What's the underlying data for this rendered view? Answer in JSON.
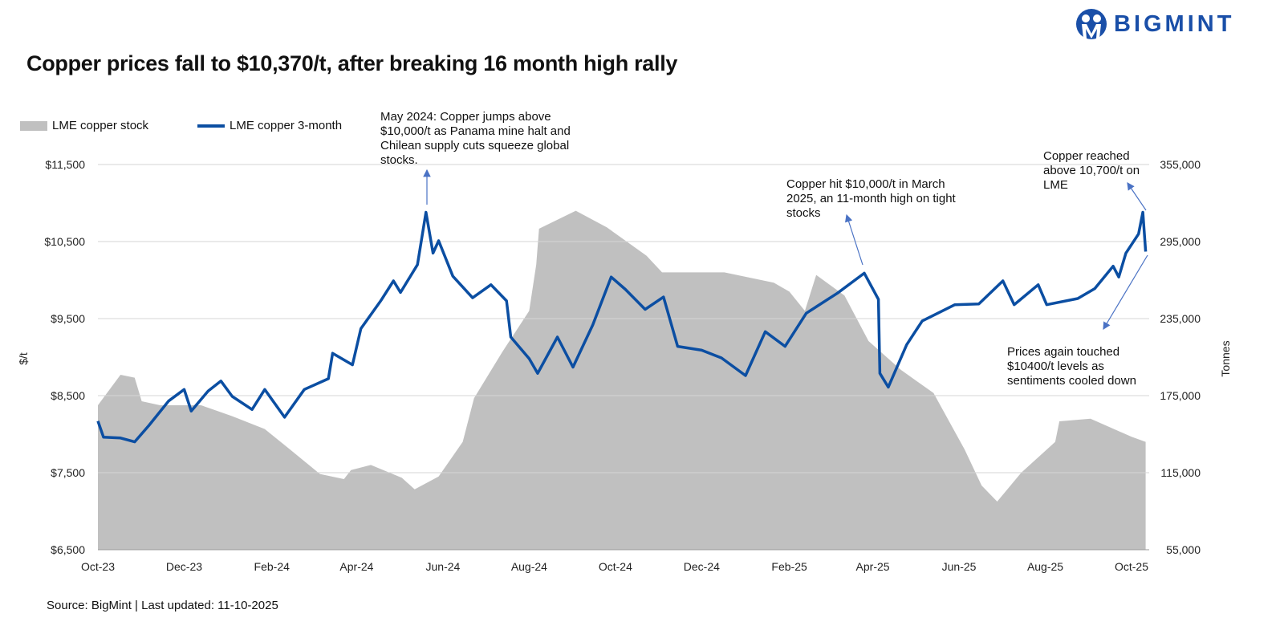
{
  "title": "Copper prices fall  to $10,370/t, after breaking 16 month high rally",
  "logo": {
    "text": "BIGMINT",
    "color": "#1a4fa8"
  },
  "source": "Source: BigMint | Last updated: 11-10-2025",
  "chart_data": {
    "type": "line+area",
    "x_ticks": [
      "Oct-23",
      "Dec-23",
      "Feb-24",
      "Apr-24",
      "Jun-24",
      "Aug-24",
      "Oct-24",
      "Dec-24",
      "Feb-25",
      "Apr-25",
      "Jun-25",
      "Aug-25",
      "Oct-25"
    ],
    "x_tick_dates": [
      "2023-10-01",
      "2023-12-01",
      "2024-02-01",
      "2024-04-01",
      "2024-06-01",
      "2024-08-01",
      "2024-10-01",
      "2024-12-01",
      "2025-02-01",
      "2025-04-01",
      "2025-06-01",
      "2025-08-01",
      "2025-10-01"
    ],
    "y_left": {
      "label": "$/t",
      "range": [
        6500,
        11500
      ],
      "ticks": [
        "$6,500",
        "$7,500",
        "$8,500",
        "$9,500",
        "$10,500",
        "$11,500"
      ],
      "tick_values": [
        6500,
        7500,
        8500,
        9500,
        10500,
        11500
      ]
    },
    "y_right": {
      "label": "Tonnes",
      "range": [
        55000,
        355000
      ],
      "ticks": [
        "55,000",
        "115,000",
        "175,000",
        "235,000",
        "295,000",
        "355,000"
      ],
      "tick_values": [
        55000,
        115000,
        175000,
        235000,
        295000,
        355000
      ]
    },
    "grid": "horizontal",
    "legend_position": "top-left",
    "series": [
      {
        "name": "LME copper stock",
        "type": "area",
        "axis": "right",
        "color": "#c0c0c0",
        "points": [
          [
            "2023-10-01",
            167500
          ],
          [
            "2023-10-17",
            191250
          ],
          [
            "2023-10-27",
            189000
          ],
          [
            "2023-11-01",
            170600
          ],
          [
            "2023-11-14",
            167500
          ],
          [
            "2023-12-13",
            167500
          ],
          [
            "2024-01-04",
            159000
          ],
          [
            "2024-01-27",
            149000
          ],
          [
            "2024-02-14",
            133000
          ],
          [
            "2024-03-06",
            114000
          ],
          [
            "2024-03-23",
            110000
          ],
          [
            "2024-03-28",
            117000
          ],
          [
            "2024-04-11",
            121000
          ],
          [
            "2024-05-03",
            111000
          ],
          [
            "2024-05-12",
            102000
          ],
          [
            "2024-05-29",
            112000
          ],
          [
            "2024-06-15",
            139000
          ],
          [
            "2024-06-23",
            173000
          ],
          [
            "2024-07-13",
            209000
          ],
          [
            "2024-08-01",
            241000
          ],
          [
            "2024-08-06",
            277000
          ],
          [
            "2024-08-08",
            305000
          ],
          [
            "2024-09-03",
            319000
          ],
          [
            "2024-09-25",
            306000
          ],
          [
            "2024-10-23",
            284000
          ],
          [
            "2024-11-03",
            271000
          ],
          [
            "2024-12-17",
            271000
          ],
          [
            "2025-01-21",
            263000
          ],
          [
            "2025-02-01",
            256000
          ],
          [
            "2025-02-12",
            241000
          ],
          [
            "2025-02-20",
            269000
          ],
          [
            "2025-03-12",
            253000
          ],
          [
            "2025-03-29",
            217500
          ],
          [
            "2025-04-21",
            195000
          ],
          [
            "2025-05-14",
            177000
          ],
          [
            "2025-06-05",
            133000
          ],
          [
            "2025-06-17",
            105000
          ],
          [
            "2025-06-28",
            92500
          ],
          [
            "2025-07-15",
            115000
          ],
          [
            "2025-08-08",
            139000
          ],
          [
            "2025-08-11",
            155000
          ],
          [
            "2025-09-02",
            157000
          ],
          [
            "2025-10-01",
            143000
          ],
          [
            "2025-10-11",
            139000
          ]
        ]
      },
      {
        "name": "LME copper 3-month",
        "type": "line",
        "axis": "left",
        "color": "#0b4ea2",
        "points": [
          [
            "2023-10-01",
            8170
          ],
          [
            "2023-10-05",
            7960
          ],
          [
            "2023-10-17",
            7950
          ],
          [
            "2023-10-27",
            7900
          ],
          [
            "2023-11-06",
            8110
          ],
          [
            "2023-11-20",
            8430
          ],
          [
            "2023-12-01",
            8580
          ],
          [
            "2023-12-06",
            8300
          ],
          [
            "2023-12-18",
            8560
          ],
          [
            "2023-12-27",
            8690
          ],
          [
            "2024-01-04",
            8490
          ],
          [
            "2024-01-18",
            8320
          ],
          [
            "2024-01-27",
            8580
          ],
          [
            "2024-02-10",
            8220
          ],
          [
            "2024-02-24",
            8580
          ],
          [
            "2024-03-12",
            8720
          ],
          [
            "2024-03-15",
            9050
          ],
          [
            "2024-03-29",
            8900
          ],
          [
            "2024-04-04",
            9370
          ],
          [
            "2024-04-18",
            9730
          ],
          [
            "2024-04-27",
            9990
          ],
          [
            "2024-05-02",
            9840
          ],
          [
            "2024-05-14",
            10200
          ],
          [
            "2024-05-20",
            10880
          ],
          [
            "2024-05-25",
            10350
          ],
          [
            "2024-05-29",
            10510
          ],
          [
            "2024-06-08",
            10050
          ],
          [
            "2024-06-22",
            9770
          ],
          [
            "2024-07-05",
            9940
          ],
          [
            "2024-07-16",
            9730
          ],
          [
            "2024-07-19",
            9260
          ],
          [
            "2024-08-01",
            8980
          ],
          [
            "2024-08-07",
            8790
          ],
          [
            "2024-08-21",
            9260
          ],
          [
            "2024-09-01",
            8870
          ],
          [
            "2024-09-15",
            9420
          ],
          [
            "2024-09-28",
            10040
          ],
          [
            "2024-10-08",
            9880
          ],
          [
            "2024-10-22",
            9620
          ],
          [
            "2024-11-04",
            9780
          ],
          [
            "2024-11-14",
            9140
          ],
          [
            "2024-12-01",
            9090
          ],
          [
            "2024-12-15",
            8990
          ],
          [
            "2025-01-01",
            8760
          ],
          [
            "2025-01-15",
            9330
          ],
          [
            "2025-01-29",
            9140
          ],
          [
            "2025-02-13",
            9570
          ],
          [
            "2025-03-07",
            9830
          ],
          [
            "2025-03-26",
            10090
          ],
          [
            "2025-04-05",
            9750
          ],
          [
            "2025-04-06",
            8790
          ],
          [
            "2025-04-12",
            8610
          ],
          [
            "2025-04-25",
            9160
          ],
          [
            "2025-05-06",
            9470
          ],
          [
            "2025-05-29",
            9680
          ],
          [
            "2025-06-15",
            9690
          ],
          [
            "2025-07-02",
            9990
          ],
          [
            "2025-07-10",
            9680
          ],
          [
            "2025-07-27",
            9940
          ],
          [
            "2025-08-02",
            9680
          ],
          [
            "2025-08-24",
            9760
          ],
          [
            "2025-09-05",
            9890
          ],
          [
            "2025-09-18",
            10180
          ],
          [
            "2025-09-22",
            10040
          ],
          [
            "2025-09-27",
            10350
          ],
          [
            "2025-10-06",
            10600
          ],
          [
            "2025-10-09",
            10880
          ],
          [
            "2025-10-11",
            10370
          ]
        ]
      }
    ],
    "annotations": [
      {
        "text": "May 2024: Copper jumps above $10,000/t as Panama mine halt and Chilean supply cuts squeeze global stocks.",
        "date": "2024-05-20"
      },
      {
        "text": "Copper hit $10,000/t in March 2025, an 11-month high on tight stocks",
        "date": "2025-03-26"
      },
      {
        "text": "Copper reached above 10,700/t on LME",
        "date": "2025-10-09"
      },
      {
        "text": "Prices again touched $10400/t levels as sentiments cooled down",
        "date": "2025-10-11"
      }
    ]
  }
}
